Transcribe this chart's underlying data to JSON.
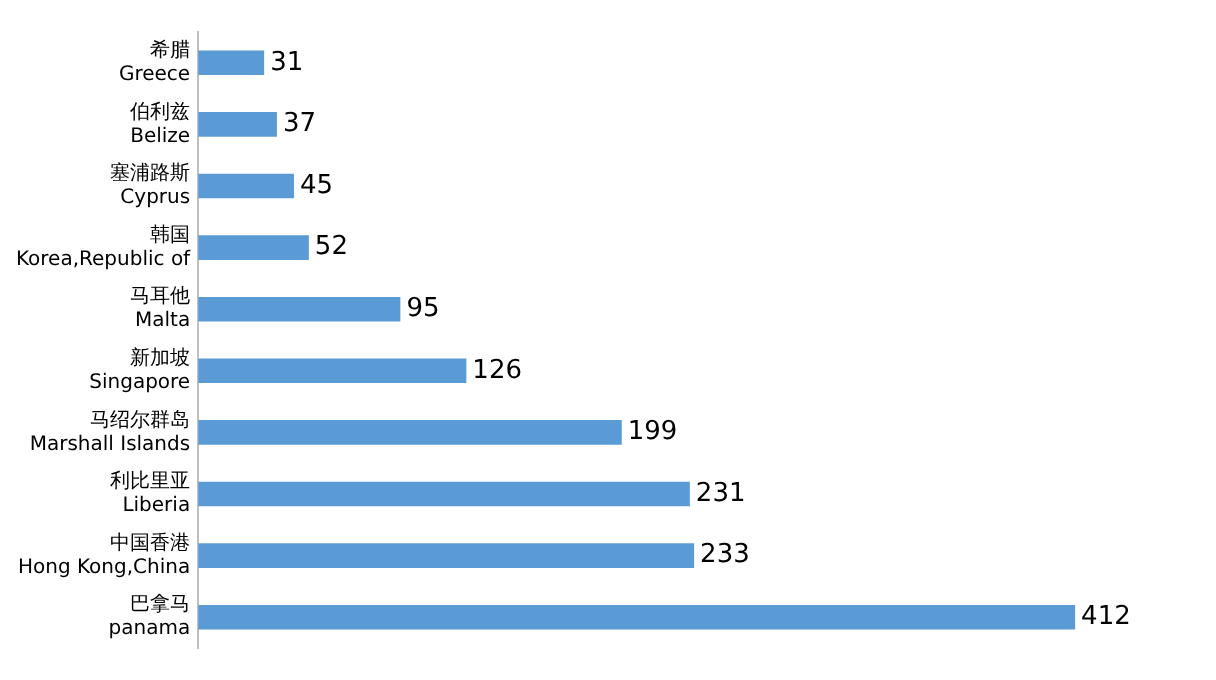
{
  "chart_data": {
    "type": "bar",
    "orientation": "horizontal",
    "categories": [
      "希腊\nGreece",
      "伯利兹\nBelize",
      "塞浦路斯\nCyprus",
      "韩国\nKorea,Republic of",
      "马耳他\nMalta",
      "新加坡\nSingapore",
      "马绍尔群岛\nMarshall Islands",
      "利比里亚\nLiberia",
      "中国香港\nHong Kong,China",
      "巴拿马\npanama"
    ],
    "values": [
      31,
      37,
      45,
      52,
      95,
      126,
      199,
      231,
      233,
      412
    ],
    "color": "#5b9bd5",
    "data_labels": true
  }
}
